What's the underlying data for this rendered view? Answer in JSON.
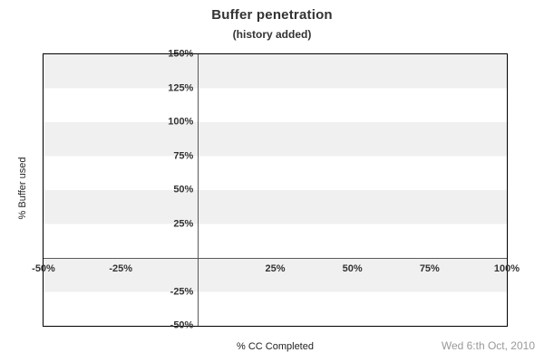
{
  "title": "Buffer penetration",
  "subtitle": "(history added)",
  "footer": {
    "date": "Wed 6:th Oct, 2010"
  },
  "chart_data": {
    "type": "line",
    "title": "Buffer penetration",
    "subtitle": "(history added)",
    "xlabel": "% CC Completed",
    "ylabel": "% Buffer used",
    "xlim": [
      -50,
      100
    ],
    "ylim": [
      -50,
      150
    ],
    "x_ticks": [
      {
        "value": -50,
        "label": "-50%"
      },
      {
        "value": -25,
        "label": "-25%"
      },
      {
        "value": 25,
        "label": "25%"
      },
      {
        "value": 50,
        "label": "50%"
      },
      {
        "value": 75,
        "label": "75%"
      },
      {
        "value": 100,
        "label": "100%"
      }
    ],
    "y_ticks": [
      {
        "value": 150,
        "label": "150%"
      },
      {
        "value": 125,
        "label": "125%"
      },
      {
        "value": 100,
        "label": "100%"
      },
      {
        "value": 75,
        "label": "75%"
      },
      {
        "value": 50,
        "label": "50%"
      },
      {
        "value": 25,
        "label": "25%"
      },
      {
        "value": -25,
        "label": "-25%"
      },
      {
        "value": -50,
        "label": "-50%"
      }
    ],
    "series": [],
    "band_step": 25,
    "grid": "alternating horizontal bands every 25%, gray/white, topmost band gray; zero lines drawn on both axes; no data plotted",
    "legend": null,
    "annotations": [
      "Wed 6:th Oct, 2010"
    ],
    "colors": {
      "band_gray": "#f0f0f0",
      "band_white": "#ffffff",
      "plot_border": "#000000",
      "zero_line": "#5a5a5a",
      "tick_text": "#333333",
      "title_text": "#333333",
      "axis_label_text": "#222222",
      "date_text": "#999999"
    }
  }
}
